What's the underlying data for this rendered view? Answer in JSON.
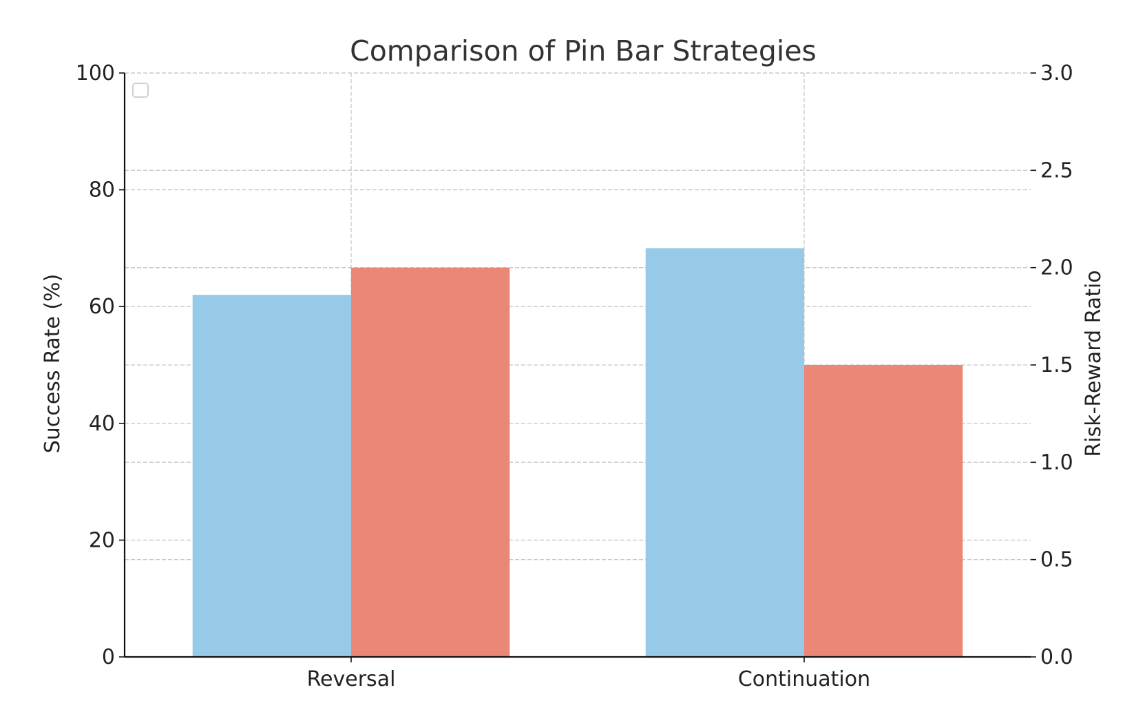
{
  "chart_data": {
    "type": "bar",
    "title": "Comparison of Pin Bar Strategies",
    "categories": [
      "Reversal",
      "Continuation"
    ],
    "xlabel": "",
    "ylabel": "Success Rate (%)",
    "ylabel_right": "Risk-Reward Ratio",
    "ylim": [
      0,
      100
    ],
    "ylim_right": [
      0,
      3.0
    ],
    "yticks": [
      "0",
      "20",
      "40",
      "60",
      "80",
      "100"
    ],
    "yticks_right": [
      "0.0",
      "0.5",
      "1.0",
      "1.5",
      "2.0",
      "2.5",
      "3.0"
    ],
    "grid": true,
    "legend_position": "top-left",
    "legend_entries": [],
    "series": [
      {
        "axis": "left",
        "color": "#96cae8",
        "values": [
          62,
          70
        ]
      },
      {
        "axis": "right",
        "color": "#ea8777",
        "values": [
          2.0,
          1.5
        ]
      }
    ]
  }
}
